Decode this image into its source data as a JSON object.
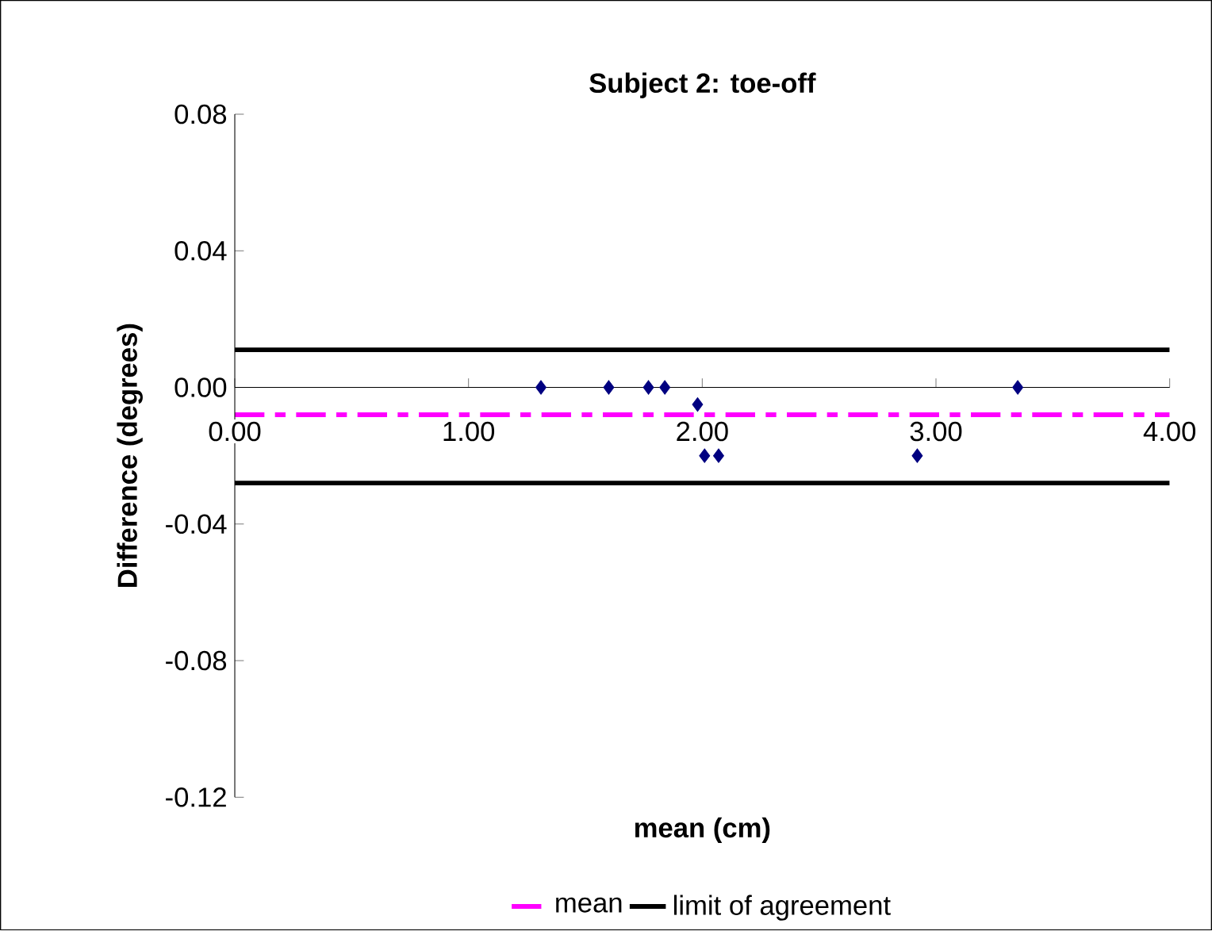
{
  "chart_data": {
    "type": "scatter",
    "title": "Subject 2: toe-off",
    "xlabel": "mean (cm)",
    "ylabel": "Difference (degrees)",
    "x": [
      1.31,
      1.6,
      1.77,
      1.84,
      1.98,
      2.01,
      2.07,
      2.92,
      3.35
    ],
    "values": [
      0,
      0,
      0,
      0,
      -0.005,
      -0.02,
      -0.02,
      -0.02,
      0
    ],
    "color": "#000080",
    "marker": "diamond",
    "xlim": [
      0,
      4
    ],
    "xticks": [
      {
        "value": 0,
        "label": "0.00"
      },
      {
        "value": 1,
        "label": "1.00"
      },
      {
        "value": 2,
        "label": "2.00"
      },
      {
        "value": 3,
        "label": "3.00"
      },
      {
        "value": 4,
        "label": "4.00"
      }
    ],
    "ylim": [
      -0.12,
      0.08
    ],
    "yticks": [
      {
        "value": -0.12,
        "label": "-0.12"
      },
      {
        "value": -0.08,
        "label": "-0.08"
      },
      {
        "value": -0.04,
        "label": "-0.04"
      },
      {
        "value": 0,
        "label": "0.00"
      },
      {
        "value": 0.04,
        "label": "0.04"
      },
      {
        "value": 0.08,
        "label": "0.08"
      }
    ],
    "ref_lines": [
      {
        "axis": "y",
        "value": -0.008,
        "label": "mean",
        "color": "#ff00ff",
        "line_style": "dashed"
      },
      {
        "axis": "y",
        "value": 0.011,
        "label": "limit of agreement",
        "color": "#000000",
        "line_style": "solid"
      },
      {
        "axis": "y",
        "value": -0.028,
        "color": "#000000",
        "line_style": "solid"
      }
    ],
    "legend": "bottom",
    "grid": false
  }
}
